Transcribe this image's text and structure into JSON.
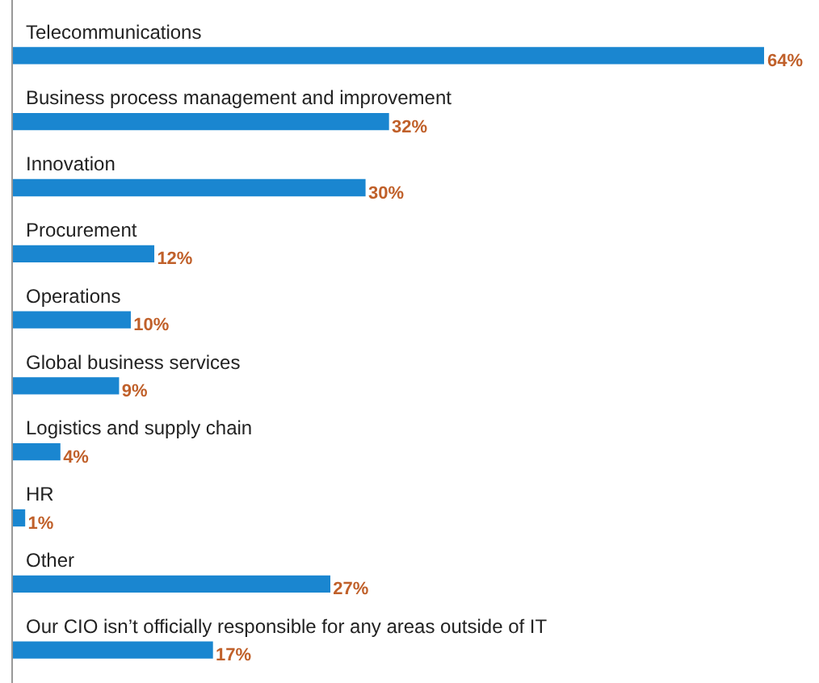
{
  "chart_data": {
    "type": "bar",
    "orientation": "horizontal",
    "categories": [
      "Telecommunications",
      "Business process management and improvement",
      "Innovation",
      "Procurement",
      "Operations",
      "Global business services",
      "Logistics and supply chain",
      "HR",
      "Other",
      "Our CIO isn’t officially responsible for any areas outside of IT"
    ],
    "values": [
      64,
      32,
      30,
      12,
      10,
      9,
      4,
      1,
      27,
      17
    ],
    "value_labels": [
      "64%",
      "32%",
      "30%",
      "12%",
      "10%",
      "9%",
      "4%",
      "1%",
      "27%",
      "17%"
    ],
    "color": "#1a86d0",
    "xlim": [
      0,
      64
    ],
    "tick_labels": false
  }
}
